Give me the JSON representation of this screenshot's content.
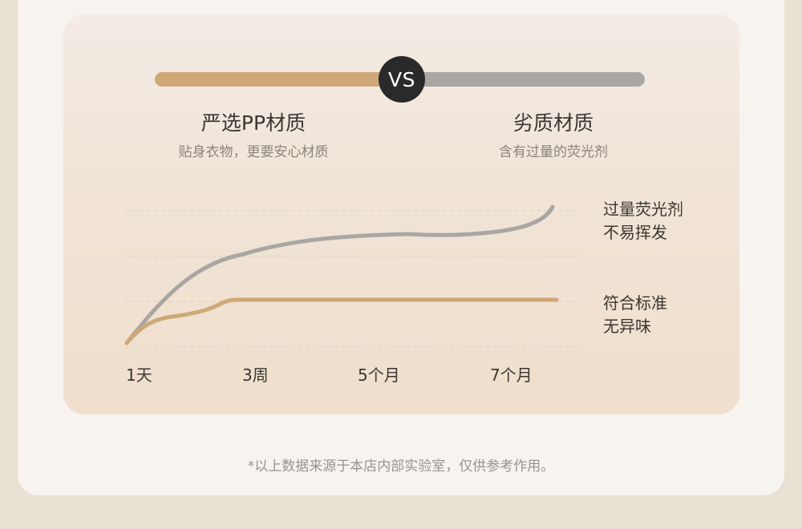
{
  "vs_badge": "VS",
  "left": {
    "title": "严选PP材质",
    "subtitle": "贴身衣物，更要安心材质",
    "color": "#cfa878"
  },
  "right": {
    "title": "劣质材质",
    "subtitle": "含有过量的荧光剂",
    "color": "#a9a6a3"
  },
  "chart_data": {
    "type": "line",
    "x_ticks": [
      "1天",
      "3周",
      "5个月",
      "7个月"
    ],
    "series": [
      {
        "label_lines": [
          "过量荧光剂",
          "不易挥发"
        ],
        "color": "#a9a6a3"
      },
      {
        "label_lines": [
          "符合标准",
          "无异味"
        ],
        "color": "#cfa878"
      }
    ],
    "grid": true
  },
  "footnote": "*以上数据来源于本店内部实验室，仅供参考作用。"
}
